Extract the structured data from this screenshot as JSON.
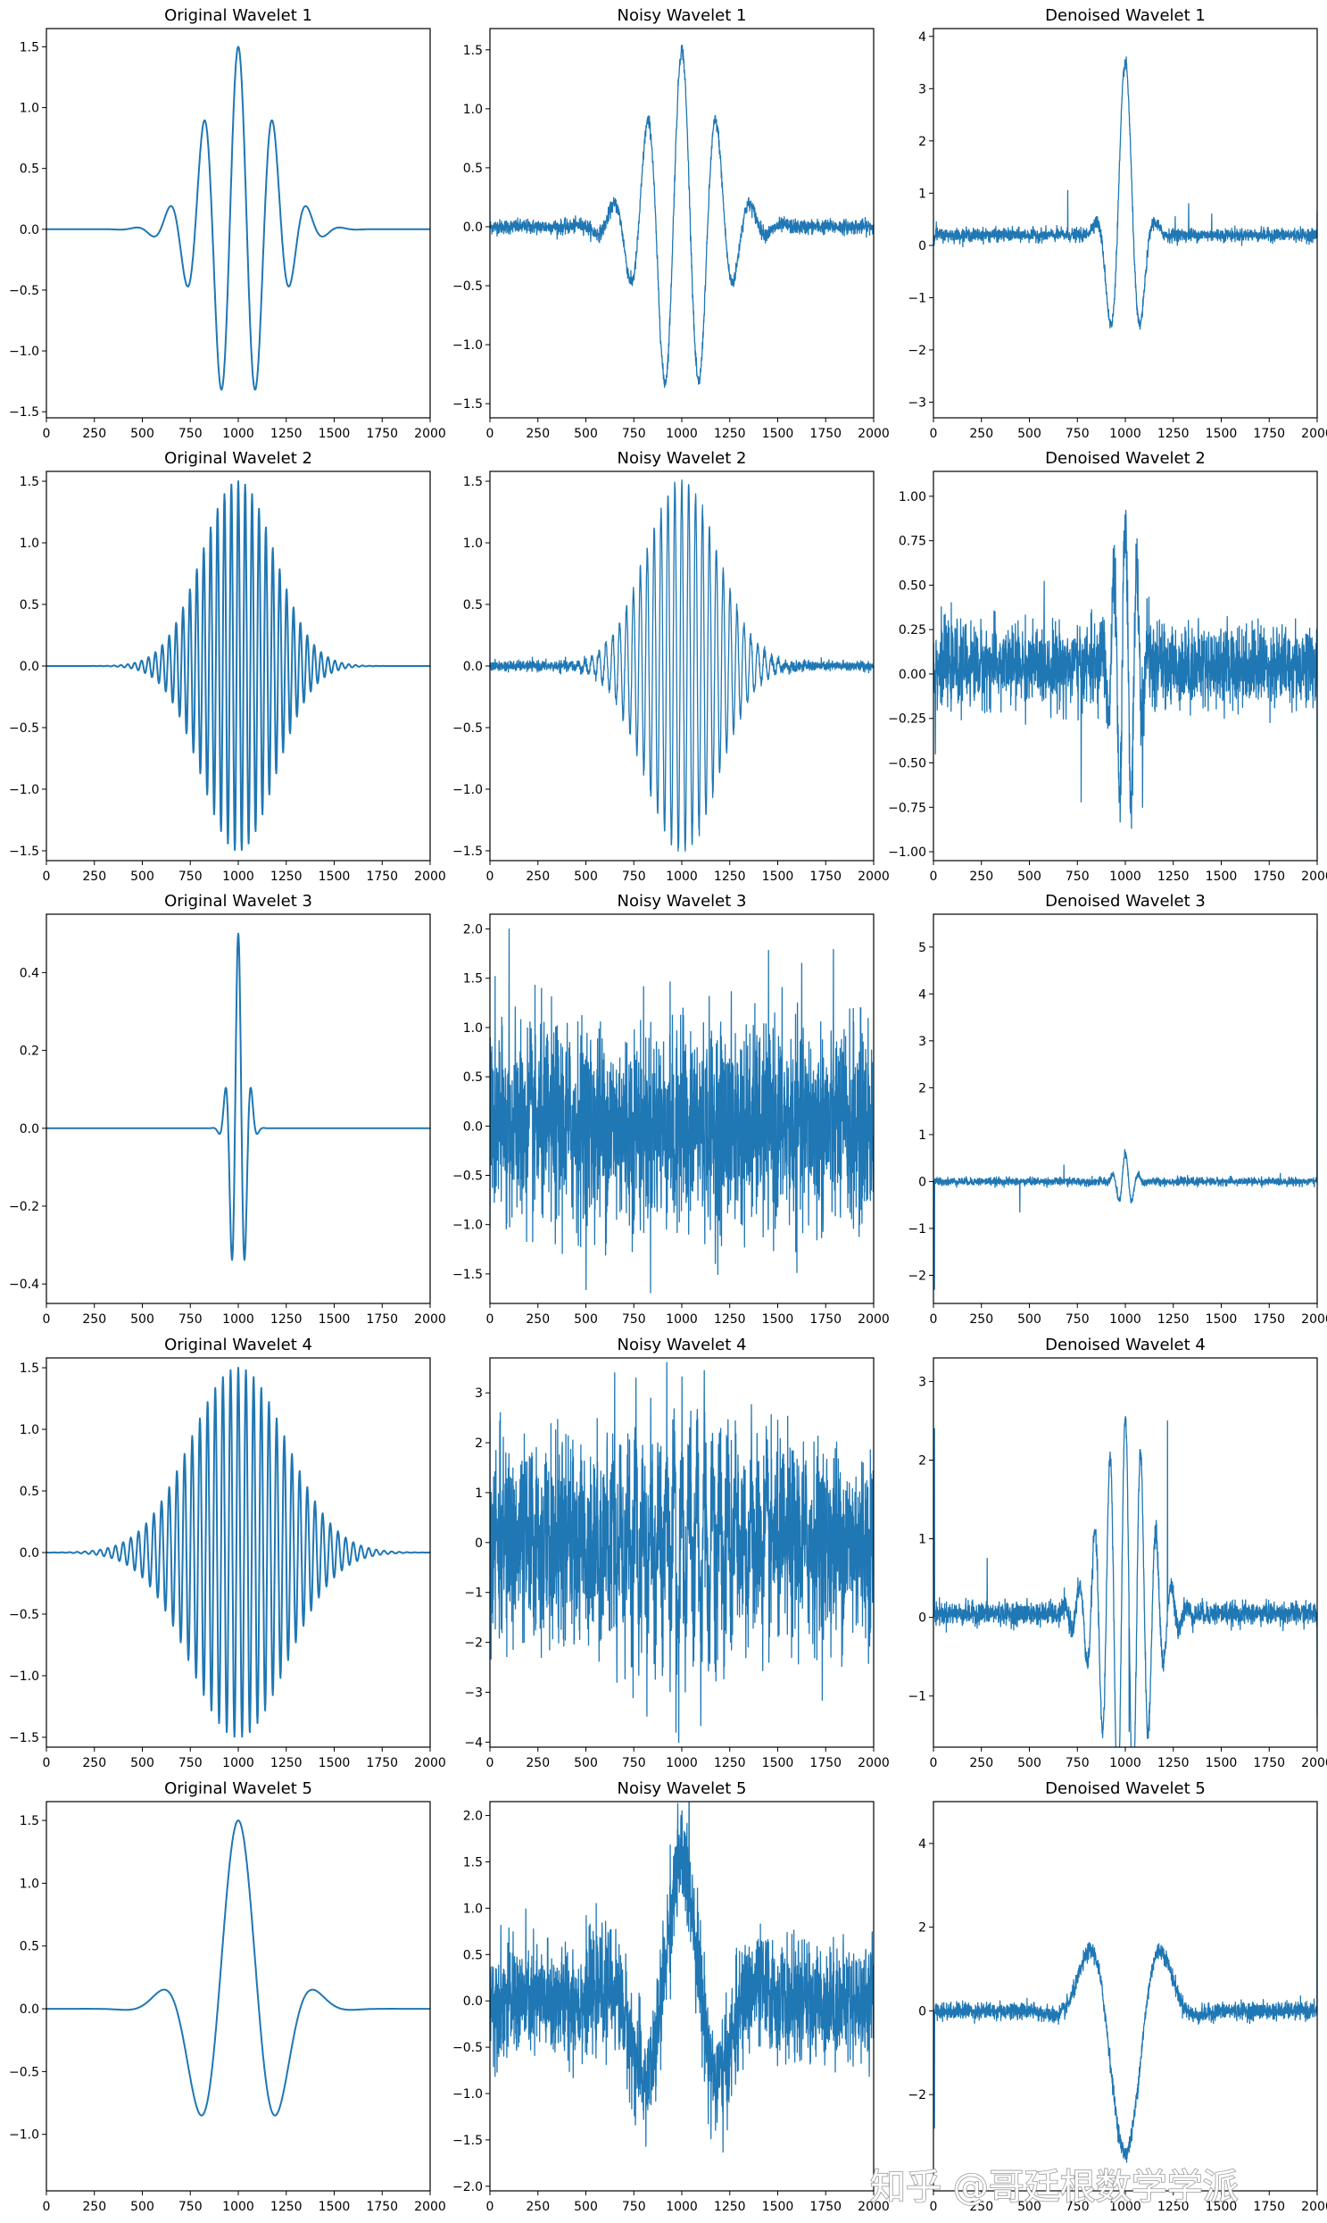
{
  "watermark": "知乎 @哥廷根数学学派",
  "colors": {
    "line": "#1f77b4",
    "frame": "#000000",
    "background": "#ffffff"
  },
  "chart_data": [
    {
      "type": "line",
      "title": "Original Wavelet 1",
      "kind": "clean",
      "xlim": [
        0,
        2000
      ],
      "ylim": [
        -1.55,
        1.65
      ],
      "xticks": [
        0,
        250,
        500,
        750,
        1000,
        1250,
        1500,
        1750,
        2000
      ],
      "yticks": [
        -1.5,
        -1.0,
        -0.5,
        0.0,
        0.5,
        1.0,
        1.5
      ],
      "ytick_labels": [
        "−1.5",
        "−1.0",
        "−0.5",
        "0.0",
        "0.5",
        "1.0",
        "1.5"
      ],
      "signal": {
        "amp": 1.5,
        "period": 180,
        "sigma": 175,
        "phase": 0
      }
    },
    {
      "type": "line",
      "title": "Noisy Wavelet 1",
      "kind": "noisy",
      "xlim": [
        0,
        2000
      ],
      "ylim": [
        -1.62,
        1.68
      ],
      "xticks": [
        0,
        250,
        500,
        750,
        1000,
        1250,
        1500,
        1750,
        2000
      ],
      "yticks": [
        -1.5,
        -1.0,
        -0.5,
        0.0,
        0.5,
        1.0,
        1.5
      ],
      "ytick_labels": [
        "−1.5",
        "−1.0",
        "−0.5",
        "0.0",
        "0.5",
        "1.0",
        "1.5"
      ],
      "signal": {
        "amp": 1.5,
        "period": 180,
        "sigma": 175,
        "phase": 0
      },
      "noise": 0.03
    },
    {
      "type": "line",
      "title": "Denoised Wavelet 1",
      "kind": "denoised",
      "xlim": [
        0,
        2000
      ],
      "ylim": [
        -3.3,
        4.15
      ],
      "xticks": [
        0,
        250,
        500,
        750,
        1000,
        1250,
        1500,
        1750,
        2000
      ],
      "yticks": [
        -3,
        -2,
        -1,
        0,
        1,
        2,
        3,
        4
      ],
      "ytick_labels": [
        "−3",
        "−2",
        "−1",
        "0",
        "1",
        "2",
        "3",
        "4"
      ],
      "signal": {
        "amp": 3.3,
        "period": 170,
        "sigma": 70,
        "phase": 0,
        "offset": 0.2
      },
      "noise": 0.06,
      "spikes": [
        {
          "x": 15,
          "y": 0.45
        },
        {
          "x": 700,
          "y": 1.05
        },
        {
          "x": 1260,
          "y": 0.55
        },
        {
          "x": 1330,
          "y": 0.8
        },
        {
          "x": 1450,
          "y": 0.6
        },
        {
          "x": 2000,
          "y": 0.65
        }
      ]
    },
    {
      "type": "line",
      "title": "Original Wavelet 2",
      "kind": "clean",
      "xlim": [
        0,
        2000
      ],
      "ylim": [
        -1.58,
        1.58
      ],
      "xticks": [
        0,
        250,
        500,
        750,
        1000,
        1250,
        1500,
        1750,
        2000
      ],
      "yticks": [
        -1.5,
        -1.0,
        -0.5,
        0.0,
        0.5,
        1.0,
        1.5
      ],
      "ytick_labels": [
        "−1.5",
        "−1.0",
        "−0.5",
        "0.0",
        "0.5",
        "1.0",
        "1.5"
      ],
      "signal": {
        "amp": 1.5,
        "period": 36,
        "sigma": 190,
        "phase": 0
      }
    },
    {
      "type": "line",
      "title": "Noisy Wavelet 2",
      "kind": "noisy",
      "xlim": [
        0,
        2000
      ],
      "ylim": [
        -1.58,
        1.58
      ],
      "xticks": [
        0,
        250,
        500,
        750,
        1000,
        1250,
        1500,
        1750,
        2000
      ],
      "yticks": [
        -1.5,
        -1.0,
        -0.5,
        0.0,
        0.5,
        1.0,
        1.5
      ],
      "ytick_labels": [
        "−1.5",
        "−1.0",
        "−0.5",
        "0.0",
        "0.5",
        "1.0",
        "1.5"
      ],
      "signal": {
        "amp": 1.5,
        "period": 36,
        "sigma": 190,
        "phase": 0
      },
      "noise": 0.02
    },
    {
      "type": "line",
      "title": "Denoised Wavelet 2",
      "kind": "denoised",
      "xlim": [
        0,
        2000
      ],
      "ylim": [
        -1.05,
        1.14
      ],
      "xticks": [
        0,
        250,
        500,
        750,
        1000,
        1250,
        1500,
        1750,
        2000
      ],
      "yticks": [
        -1.0,
        -0.75,
        -0.5,
        -0.25,
        0.0,
        0.25,
        0.5,
        0.75,
        1.0
      ],
      "ytick_labels": [
        "−1.00",
        "−0.75",
        "−0.50",
        "−0.25",
        "0.00",
        "0.25",
        "0.50",
        "0.75",
        "1.00"
      ],
      "signal": {
        "amp": 0.85,
        "period": 60,
        "sigma": 60,
        "phase": 0,
        "offset": 0.05
      },
      "noise": 0.11,
      "spikes": [
        {
          "x": 10,
          "y": -0.45
        },
        {
          "x": 770,
          "y": -0.72
        },
        {
          "x": 1090,
          "y": -0.75
        },
        {
          "x": 2000,
          "y": -0.93
        }
      ]
    },
    {
      "type": "line",
      "title": "Original Wavelet 3",
      "kind": "clean",
      "xlim": [
        0,
        2000
      ],
      "ylim": [
        -0.45,
        0.55
      ],
      "xticks": [
        0,
        250,
        500,
        750,
        1000,
        1250,
        1500,
        1750,
        2000
      ],
      "yticks": [
        -0.4,
        -0.2,
        0.0,
        0.2,
        0.4
      ],
      "ytick_labels": [
        "−0.4",
        "−0.2",
        "0.0",
        "0.2",
        "0.4"
      ],
      "signal": {
        "amp": 0.5,
        "period": 70,
        "sigma": 38,
        "phase": 0
      }
    },
    {
      "type": "line",
      "title": "Noisy Wavelet 3",
      "kind": "noisy",
      "xlim": [
        0,
        2000
      ],
      "ylim": [
        -1.8,
        2.15
      ],
      "xticks": [
        0,
        250,
        500,
        750,
        1000,
        1250,
        1500,
        1750,
        2000
      ],
      "yticks": [
        -1.5,
        -1.0,
        -0.5,
        0.0,
        0.5,
        1.0,
        1.5,
        2.0
      ],
      "ytick_labels": [
        "−1.5",
        "−1.0",
        "−0.5",
        "0.0",
        "0.5",
        "1.0",
        "1.5",
        "2.0"
      ],
      "signal": {
        "amp": 0.5,
        "period": 70,
        "sigma": 38,
        "phase": 0
      },
      "noise": 0.5,
      "spikes": [
        {
          "x": 100,
          "y": 2.0
        }
      ]
    },
    {
      "type": "line",
      "title": "Denoised Wavelet 3",
      "kind": "denoised",
      "xlim": [
        0,
        2000
      ],
      "ylim": [
        -2.6,
        5.7
      ],
      "xticks": [
        0,
        250,
        500,
        750,
        1000,
        1250,
        1500,
        1750,
        2000
      ],
      "yticks": [
        -2,
        -1,
        0,
        1,
        2,
        3,
        4,
        5
      ],
      "ytick_labels": [
        "−2",
        "−1",
        "0",
        "1",
        "2",
        "3",
        "4",
        "5"
      ],
      "signal": {
        "amp": 0.6,
        "period": 70,
        "sigma": 40,
        "phase": 0,
        "offset": 0.0
      },
      "noise": 0.04,
      "spikes": [
        {
          "x": 5,
          "y": -2.3
        },
        {
          "x": 450,
          "y": -0.65
        },
        {
          "x": 680,
          "y": 0.35
        },
        {
          "x": 2000,
          "y": 5.35
        }
      ]
    },
    {
      "type": "line",
      "title": "Original Wavelet 4",
      "kind": "clean",
      "xlim": [
        0,
        2000
      ],
      "ylim": [
        -1.58,
        1.58
      ],
      "xticks": [
        0,
        250,
        500,
        750,
        1000,
        1250,
        1500,
        1750,
        2000
      ],
      "yticks": [
        -1.5,
        -1.0,
        -0.5,
        0.0,
        0.5,
        1.0,
        1.5
      ],
      "ytick_labels": [
        "−1.5",
        "−1.0",
        "−0.5",
        "0.0",
        "0.5",
        "1.0",
        "1.5"
      ],
      "signal": {
        "amp": 1.5,
        "period": 40,
        "sigma": 250,
        "phase": 0
      }
    },
    {
      "type": "line",
      "title": "Noisy Wavelet 4",
      "kind": "noisy",
      "xlim": [
        0,
        2000
      ],
      "ylim": [
        -4.1,
        3.7
      ],
      "xticks": [
        0,
        250,
        500,
        750,
        1000,
        1250,
        1500,
        1750,
        2000
      ],
      "yticks": [
        -4,
        -3,
        -2,
        -1,
        0,
        1,
        2,
        3
      ],
      "ytick_labels": [
        "−4",
        "−3",
        "−2",
        "−1",
        "0",
        "1",
        "2",
        "3"
      ],
      "signal": {
        "amp": 1.5,
        "period": 40,
        "sigma": 250,
        "phase": 0
      },
      "noise": 0.95,
      "spikes": [
        {
          "x": 650,
          "y": 3.4
        },
        {
          "x": 970,
          "y": -3.8
        }
      ]
    },
    {
      "type": "line",
      "title": "Denoised Wavelet 4",
      "kind": "denoised",
      "xlim": [
        0,
        2000
      ],
      "ylim": [
        -1.65,
        3.3
      ],
      "xticks": [
        0,
        250,
        500,
        750,
        1000,
        1250,
        1500,
        1750,
        2000
      ],
      "yticks": [
        -1,
        0,
        1,
        2,
        3
      ],
      "ytick_labels": [
        "−1",
        "0",
        "1",
        "2",
        "3"
      ],
      "signal": {
        "amp": 2.5,
        "period": 80,
        "sigma": 120,
        "phase": 0,
        "offset": 0.05
      },
      "noise": 0.07,
      "spikes": [
        {
          "x": 5,
          "y": 2.4
        },
        {
          "x": 280,
          "y": 0.75
        },
        {
          "x": 1020,
          "y": -1.45
        },
        {
          "x": 1220,
          "y": 2.5
        },
        {
          "x": 2000,
          "y": -1.25
        }
      ]
    },
    {
      "type": "line",
      "title": "Original Wavelet 5",
      "kind": "clean",
      "xlim": [
        0,
        2000
      ],
      "ylim": [
        -1.45,
        1.65
      ],
      "xticks": [
        0,
        250,
        500,
        750,
        1000,
        1250,
        1500,
        1750,
        2000
      ],
      "yticks": [
        -1.0,
        -0.5,
        0.0,
        0.5,
        1.0,
        1.5
      ],
      "ytick_labels": [
        "−1.0",
        "−0.5",
        "0.0",
        "0.5",
        "1.0",
        "1.5"
      ],
      "signal": {
        "amp": 1.5,
        "period": 430,
        "sigma": 190,
        "phase": 0
      }
    },
    {
      "type": "line",
      "title": "Noisy Wavelet 5",
      "kind": "noisy",
      "xlim": [
        0,
        2000
      ],
      "ylim": [
        -2.05,
        2.15
      ],
      "xticks": [
        0,
        250,
        500,
        750,
        1000,
        1250,
        1500,
        1750,
        2000
      ],
      "yticks": [
        -2.0,
        -1.5,
        -1.0,
        -0.5,
        0.0,
        0.5,
        1.0,
        1.5,
        2.0
      ],
      "ytick_labels": [
        "−2.0",
        "−1.5",
        "−1.0",
        "−0.5",
        "0.0",
        "0.5",
        "1.0",
        "1.5",
        "2.0"
      ],
      "signal": {
        "amp": 1.5,
        "period": 430,
        "sigma": 190,
        "phase": 0
      },
      "noise": 0.3
    },
    {
      "type": "line",
      "title": "Denoised Wavelet 5",
      "kind": "denoised",
      "xlim": [
        0,
        2000
      ],
      "ylim": [
        -4.3,
        5.0
      ],
      "xticks": [
        0,
        250,
        500,
        750,
        1000,
        1250,
        1500,
        1750,
        2000
      ],
      "yticks": [
        -2,
        0,
        2,
        4
      ],
      "ytick_labels": [
        "−2",
        "0",
        "2",
        "4"
      ],
      "signal": {
        "amp": 3.4,
        "period": 430,
        "sigma": 150,
        "phase": 3.14159,
        "offset": 0.0
      },
      "noise": 0.1,
      "spikes": [
        {
          "x": 5,
          "y": -2.8
        },
        {
          "x": 2000,
          "y": 4.8
        }
      ]
    }
  ]
}
